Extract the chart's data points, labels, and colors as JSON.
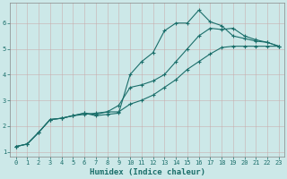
{
  "xlabel": "Humidex (Indice chaleur)",
  "xlim": [
    -0.5,
    23.5
  ],
  "ylim": [
    0.8,
    6.8
  ],
  "background_color": "#cce8e8",
  "grid_color": "#b8d8d8",
  "line_color": "#1a6e6a",
  "series": [
    [
      1.2,
      1.3,
      1.75,
      2.25,
      2.3,
      2.4,
      2.5,
      2.4,
      2.45,
      2.5,
      4.0,
      4.5,
      4.85,
      5.7,
      6.0,
      6.0,
      6.5,
      6.05,
      5.9,
      5.5,
      5.4,
      5.3,
      5.25,
      5.1
    ],
    [
      1.2,
      1.3,
      1.75,
      2.25,
      2.3,
      2.4,
      2.5,
      2.45,
      2.55,
      2.8,
      3.5,
      3.6,
      3.75,
      4.0,
      4.5,
      5.0,
      5.5,
      5.8,
      5.75,
      5.8,
      5.5,
      5.35,
      5.25,
      5.1
    ],
    [
      1.2,
      1.3,
      1.75,
      2.25,
      2.3,
      2.4,
      2.45,
      2.5,
      2.55,
      2.55,
      2.85,
      3.0,
      3.2,
      3.5,
      3.8,
      4.2,
      4.5,
      4.8,
      5.05,
      5.1,
      5.1,
      5.1,
      5.1,
      5.1
    ]
  ],
  "x_ticks": [
    0,
    1,
    2,
    3,
    4,
    5,
    6,
    7,
    8,
    9,
    10,
    11,
    12,
    13,
    14,
    15,
    16,
    17,
    18,
    19,
    20,
    21,
    22,
    23
  ],
  "y_ticks": [
    1,
    2,
    3,
    4,
    5,
    6
  ],
  "marker": "+",
  "markersize": 3.5,
  "markeredgewidth": 0.8,
  "linewidth": 0.8,
  "tick_fontsize": 5.0,
  "xlabel_fontsize": 6.5
}
